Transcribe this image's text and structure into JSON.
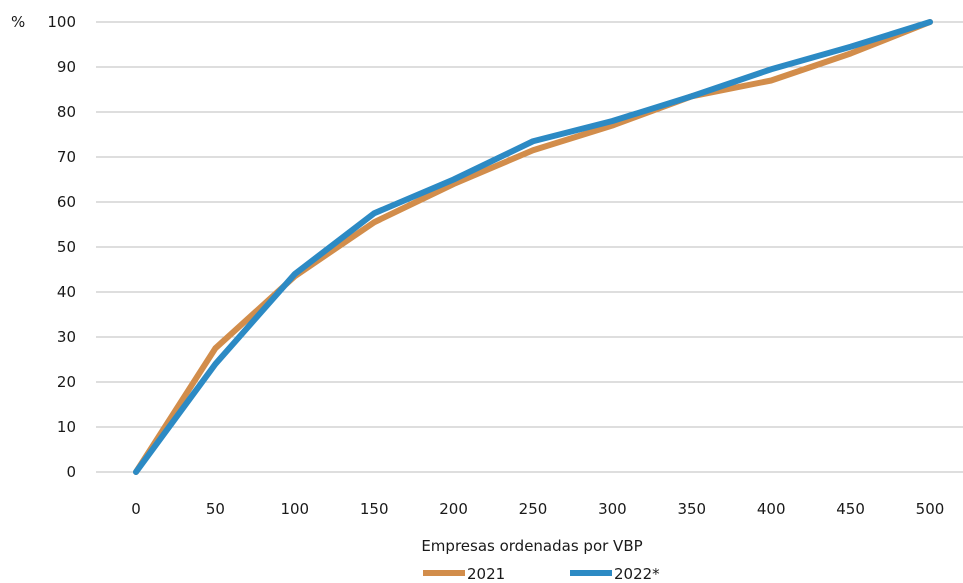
{
  "chart_data": {
    "type": "line",
    "ylabel": "%",
    "xlabel": "Empresas ordenadas por VBP",
    "x": [
      0,
      50,
      100,
      150,
      200,
      250,
      300,
      350,
      400,
      450,
      500
    ],
    "ylim": [
      0,
      100
    ],
    "xlim": [
      0,
      500
    ],
    "yticks": [
      0,
      10,
      20,
      30,
      40,
      50,
      60,
      70,
      80,
      90,
      100
    ],
    "grid": true,
    "legend_position": "bottom",
    "series": [
      {
        "name": "2021",
        "color": "#D28D4B",
        "values": [
          0,
          27.5,
          43.5,
          55.5,
          64,
          71.5,
          77,
          83.5,
          87,
          93,
          100
        ]
      },
      {
        "name": "2022*",
        "color": "#2C8AC4",
        "values": [
          0,
          24,
          44,
          57.5,
          65,
          73.5,
          78,
          83.5,
          89.5,
          94.5,
          100
        ]
      }
    ]
  }
}
